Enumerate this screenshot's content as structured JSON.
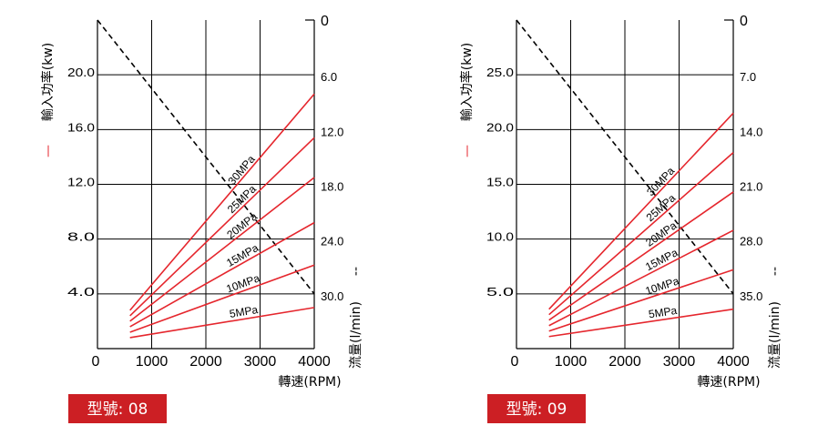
{
  "colors": {
    "power": "#e5262d",
    "flow": "#000000",
    "grid": "#000000",
    "badge": "#cc1f24"
  },
  "legend": {
    "power_marker": "—",
    "flow_marker": "--"
  },
  "chart_data": [
    {
      "type": "line",
      "model_label": "型號: 08",
      "xlabel": "轉速(RPM)",
      "ylabel_left": "輸入功率(kw)",
      "ylabel_right": "流量(l/min)",
      "x_ticks": [
        0,
        1000,
        2000,
        3000,
        4000
      ],
      "x_tick_labels": [
        "0",
        "1000",
        "2000",
        "3000",
        "4000"
      ],
      "xlim": [
        0,
        4000
      ],
      "left_ticks": [
        4,
        8,
        12,
        16,
        20
      ],
      "left_tick_labels": [
        "4.0",
        "8.0",
        "12.0",
        "16.0",
        "20.0"
      ],
      "left_ylim": [
        0,
        24
      ],
      "right_ticks": [
        0,
        6,
        12,
        18,
        24,
        30
      ],
      "right_tick_labels": [
        "0",
        "6.0",
        "12.0",
        "18.0",
        "24.0",
        "30.0"
      ],
      "right_ylim_top_to_bottom": [
        0,
        36
      ],
      "flow_line": {
        "x": [
          0,
          4000
        ],
        "y": [
          0,
          30
        ]
      },
      "series": [
        {
          "name": "5MPa",
          "x": [
            600,
            4000
          ],
          "y": [
            0.8,
            3.0
          ]
        },
        {
          "name": "10MPa",
          "x": [
            600,
            4000
          ],
          "y": [
            1.2,
            6.1
          ]
        },
        {
          "name": "15MPa",
          "x": [
            600,
            4000
          ],
          "y": [
            1.6,
            9.2
          ]
        },
        {
          "name": "20MPa",
          "x": [
            600,
            4000
          ],
          "y": [
            2.0,
            12.5
          ]
        },
        {
          "name": "25MPa",
          "x": [
            600,
            4000
          ],
          "y": [
            2.4,
            15.4
          ]
        },
        {
          "name": "30MPa",
          "x": [
            600,
            4000
          ],
          "y": [
            2.8,
            18.6
          ]
        }
      ]
    },
    {
      "type": "line",
      "model_label": "型號: 09",
      "xlabel": "轉速(RPM)",
      "ylabel_left": "輸入功率(kw)",
      "ylabel_right": "流量(l/min)",
      "x_ticks": [
        0,
        1000,
        2000,
        3000,
        4000
      ],
      "x_tick_labels": [
        "0",
        "1000",
        "2000",
        "3000",
        "4000"
      ],
      "xlim": [
        0,
        4000
      ],
      "left_ticks": [
        5,
        10,
        15,
        20,
        25
      ],
      "left_tick_labels": [
        "5.0",
        "10.0",
        "15.0",
        "20.0",
        "25.0"
      ],
      "left_ylim": [
        0,
        30
      ],
      "right_ticks": [
        0,
        7,
        14,
        21,
        28,
        35
      ],
      "right_tick_labels": [
        "0",
        "7.0",
        "14.0",
        "21.0",
        "28.0",
        "35.0"
      ],
      "right_ylim_top_to_bottom": [
        0,
        42
      ],
      "flow_line": {
        "x": [
          0,
          4000
        ],
        "y": [
          0,
          35
        ]
      },
      "series": [
        {
          "name": "5MPa",
          "x": [
            600,
            4000
          ],
          "y": [
            1.1,
            3.6
          ]
        },
        {
          "name": "10MPa",
          "x": [
            600,
            4000
          ],
          "y": [
            1.6,
            7.2
          ]
        },
        {
          "name": "15MPa",
          "x": [
            600,
            4000
          ],
          "y": [
            2.1,
            10.8
          ]
        },
        {
          "name": "20MPa",
          "x": [
            600,
            4000
          ],
          "y": [
            2.6,
            14.3
          ]
        },
        {
          "name": "25MPa",
          "x": [
            600,
            4000
          ],
          "y": [
            3.1,
            17.9
          ]
        },
        {
          "name": "30MPa",
          "x": [
            600,
            4000
          ],
          "y": [
            3.6,
            21.5
          ]
        }
      ]
    }
  ]
}
